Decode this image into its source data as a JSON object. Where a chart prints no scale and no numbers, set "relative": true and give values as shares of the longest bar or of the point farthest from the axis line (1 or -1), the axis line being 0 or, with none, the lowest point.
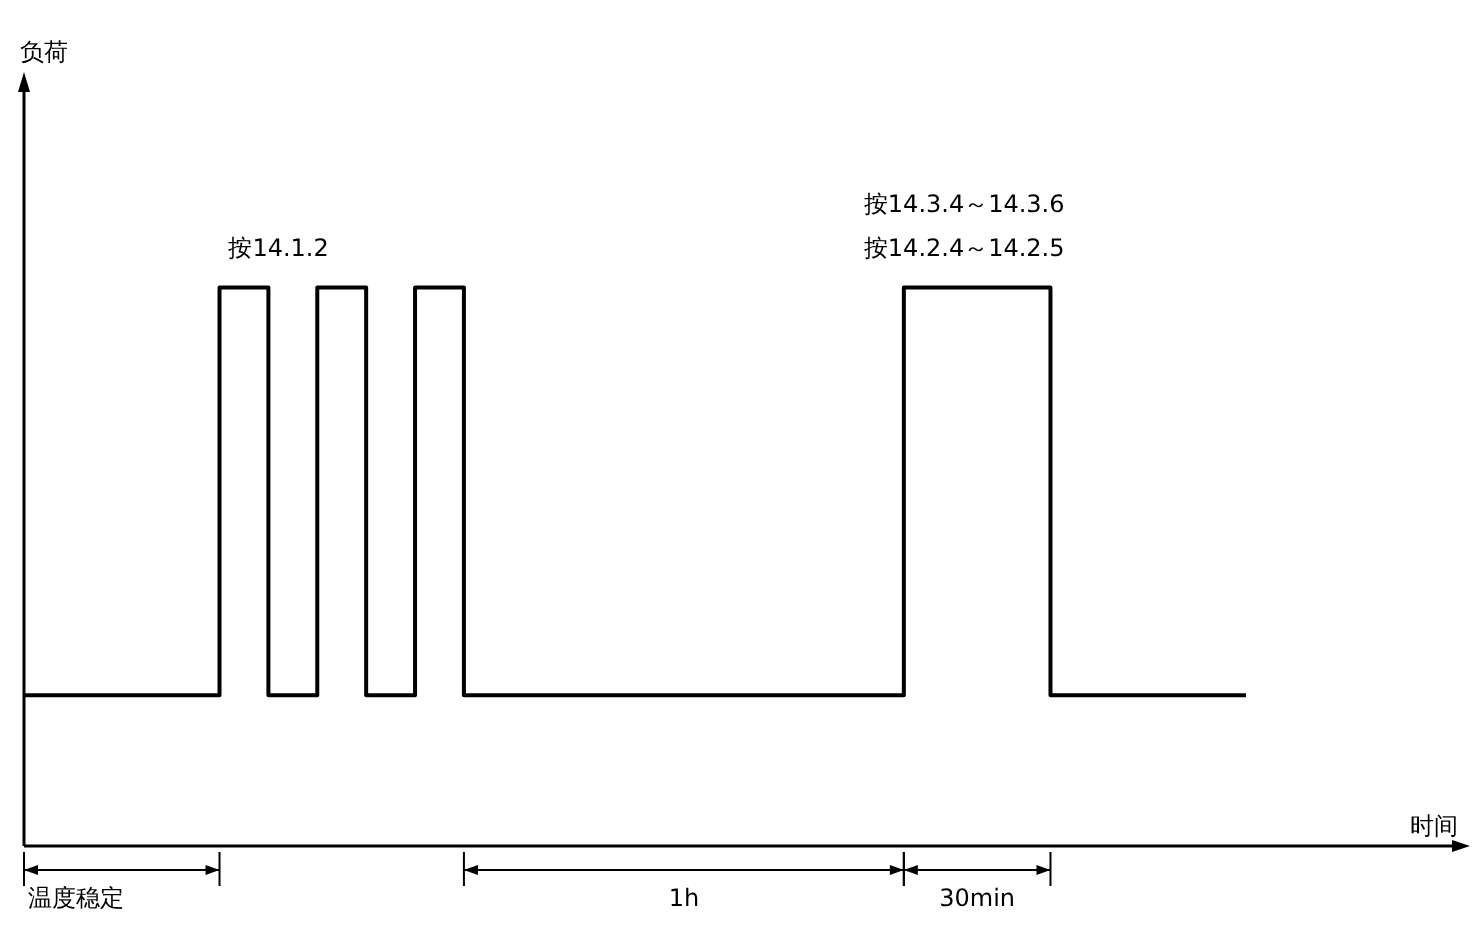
{
  "chart_data": {
    "type": "step",
    "relative": true,
    "legend": false,
    "marker": "none",
    "categories": [
      null,
      null,
      null,
      null,
      null,
      null,
      null,
      null,
      null,
      null,
      null,
      null,
      null,
      null,
      null,
      null,
      null,
      null,
      null,
      null,
      null,
      null,
      null,
      null,
      null,
      null
    ],
    "series": [
      {
        "color": "#000000",
        "values": [
          0.27,
          0.27,
          0.27,
          0.27,
          1,
          0.27,
          1,
          0.27,
          1,
          0.27,
          0.27,
          0.27,
          0.27,
          0.27,
          0.27,
          0.27,
          0.27,
          0.27,
          1,
          1,
          1,
          0.27,
          0.27,
          0.27,
          0.27,
          0.27
        ]
      }
    ],
    "annotations": [
      "按14.1.2",
      "按14.3.4～14.3.6",
      "按14.2.4～14.2.5",
      "温度稳定",
      "1h",
      "30min",
      "负荷",
      "时间"
    ]
  }
}
